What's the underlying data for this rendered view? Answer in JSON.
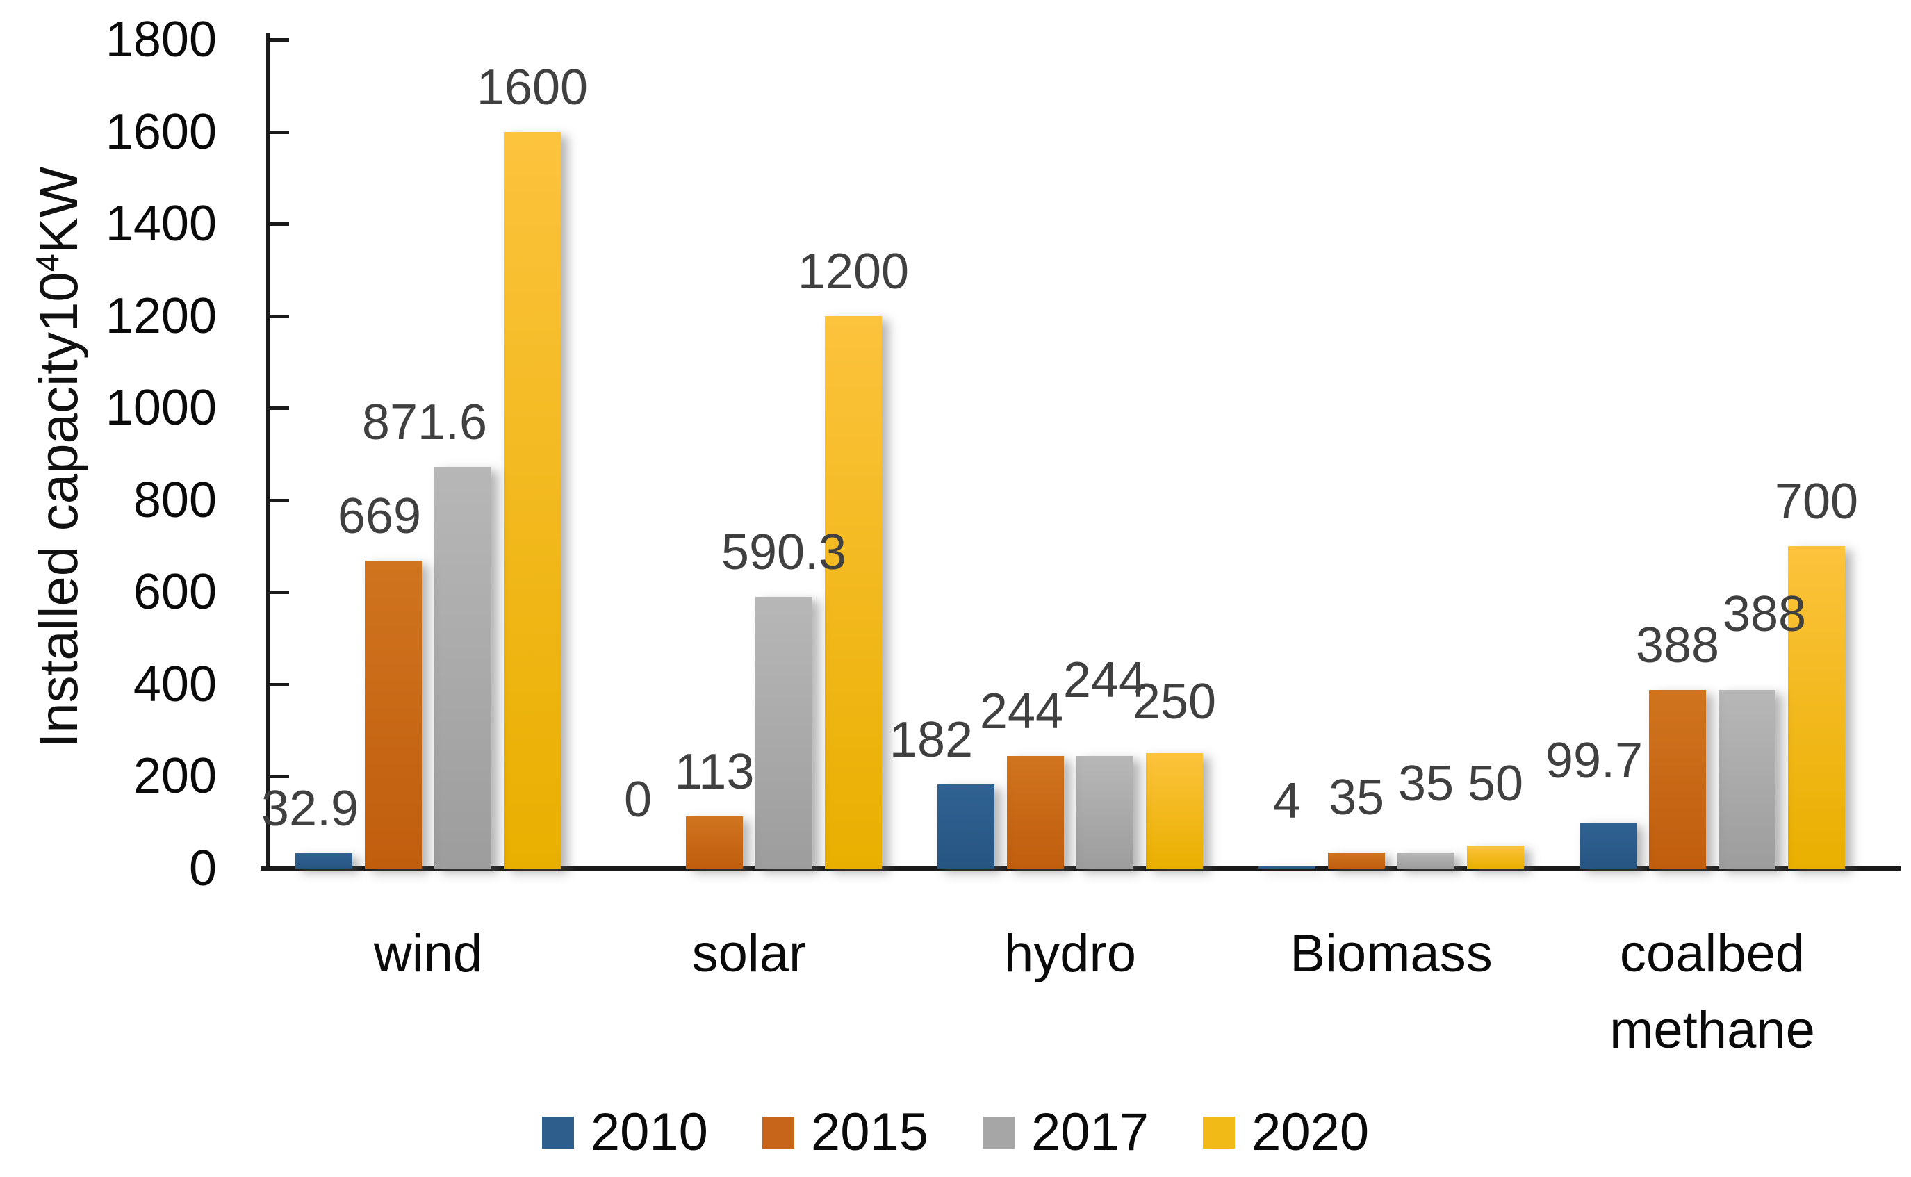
{
  "chart_data": {
    "type": "bar",
    "title": "",
    "ylabel": {
      "text": "Installed capacity10⁴KW",
      "prefix": "Installed capacity10",
      "sup": "4",
      "suffix": "KW"
    },
    "categories": [
      "wind",
      "solar",
      "hydro",
      "Biomass",
      "coalbed methane"
    ],
    "category_lines": [
      [
        "wind"
      ],
      [
        "solar"
      ],
      [
        "hydro"
      ],
      [
        "Biomass"
      ],
      [
        "coalbed",
        "methane"
      ]
    ],
    "series": [
      {
        "name": "2010",
        "values": [
          32.9,
          0,
          182,
          4,
          99.7
        ],
        "color_top": "#306292",
        "color_bottom": "#275582",
        "legend_color": "#2d5e8c"
      },
      {
        "name": "2015",
        "values": [
          669,
          113,
          244,
          35,
          388
        ],
        "color_top": "#d0741f",
        "color_bottom": "#c05e0e",
        "legend_color": "#c7661a"
      },
      {
        "name": "2017",
        "values": [
          871.6,
          590.3,
          244,
          35,
          388
        ],
        "color_top": "#b7b7b7",
        "color_bottom": "#9d9d9d",
        "legend_color": "#a6a6a6"
      },
      {
        "name": "2020",
        "values": [
          1600,
          1200,
          250,
          50,
          700
        ],
        "color_top": "#fcc33d",
        "color_bottom": "#e9af00",
        "legend_color": "#f2ba16"
      }
    ],
    "ylim": [
      0,
      1800
    ],
    "ytick_step": 200,
    "ytick_labels": [
      "0",
      "200",
      "400",
      "600",
      "800",
      "1000",
      "1200",
      "1400",
      "1600",
      "1800"
    ],
    "grid": false,
    "legend_position": "bottom",
    "axis_color": "#1a1a1a",
    "data_label_color": "#404040",
    "label_offsets": {
      "dx": [
        [
          -20,
          -20,
          -55,
          0
        ],
        [
          -10,
          0,
          0,
          0
        ],
        [
          -50,
          -20,
          0,
          0
        ],
        [
          0,
          0,
          0,
          0
        ],
        [
          -20,
          0,
          25,
          0
        ]
      ],
      "dy": [
        [
          0,
          0,
          0,
          0
        ],
        [
          -35,
          0,
          0,
          0
        ],
        [
          0,
          0,
          -45,
          -10
        ],
        [
          -30,
          -15,
          -35,
          -25
        ],
        [
          -25,
          0,
          -45,
          0
        ]
      ]
    }
  }
}
